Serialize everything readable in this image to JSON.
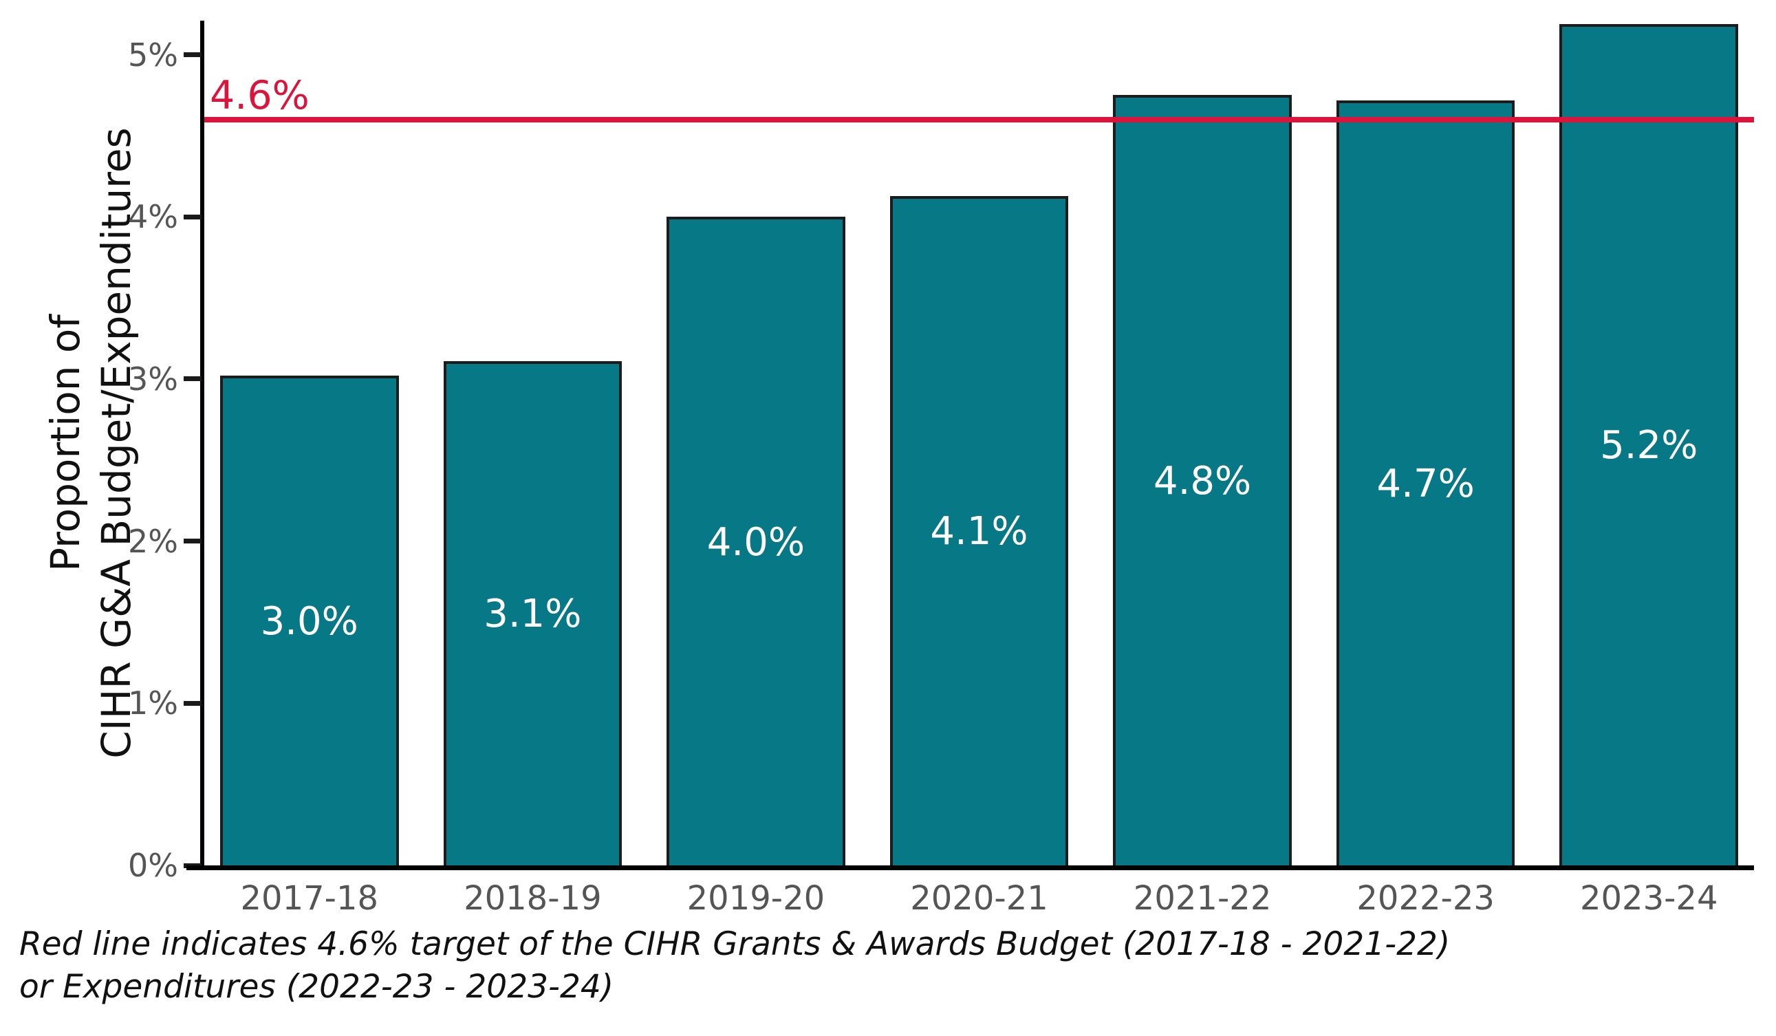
{
  "chart_data": {
    "type": "bar",
    "title": "",
    "categories": [
      "2017-18",
      "2018-19",
      "2019-20",
      "2020-21",
      "2021-22",
      "2022-23",
      "2023-24"
    ],
    "values": [
      3.0,
      3.1,
      4.0,
      4.1,
      4.8,
      4.7,
      5.2
    ],
    "bar_labels": [
      "3.0%",
      "3.1%",
      "4.0%",
      "4.1%",
      "4.8%",
      "4.7%",
      "5.2%"
    ],
    "bar_heights_precise": [
      3.02,
      3.11,
      4.0,
      4.13,
      4.75,
      4.72,
      5.19
    ],
    "xlabel": "",
    "ylabel_line1": "Proportion of",
    "ylabel_line2": "CIHR G&A Budget/Expenditures",
    "ylim": [
      0,
      5.21
    ],
    "grid": "off",
    "legend": "none",
    "y_ticks": [
      {
        "value": 0,
        "label": "0%"
      },
      {
        "value": 1,
        "label": "1%"
      },
      {
        "value": 2,
        "label": "2%"
      },
      {
        "value": 3,
        "label": "3%"
      },
      {
        "value": 4,
        "label": "4%"
      },
      {
        "value": 5,
        "label": "5%"
      }
    ],
    "target_line": {
      "value": 4.6,
      "label": "4.6%",
      "color": "#dc143c"
    },
    "colors": {
      "bar_fill": "#077886",
      "bar_border": "#1c1c1c",
      "axis": "#000000",
      "tick_text": "#555555",
      "bar_label_text": "#ffffff"
    },
    "caption_line1": "Red line indicates 4.6% target of the CIHR Grants & Awards Budget (2017-18 - 2021-22)",
    "caption_line2": "or Expenditures (2022-23 - 2023-24)"
  }
}
